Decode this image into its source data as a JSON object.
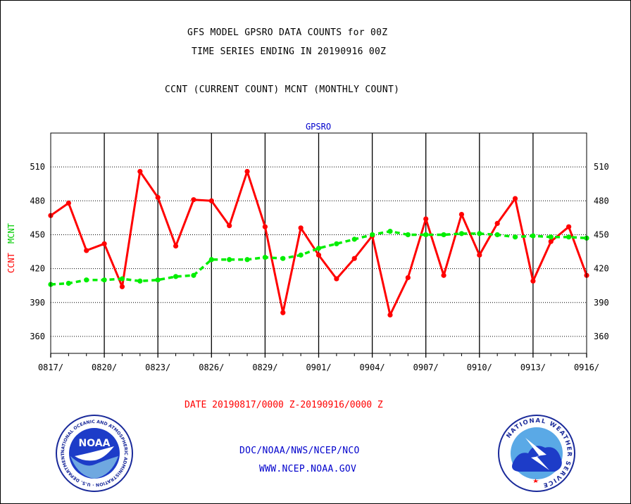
{
  "header": {
    "line1": "GFS MODEL GPSRO DATA COUNTS for 00Z",
    "line2": "TIME SERIES ENDING IN 20190916 00Z",
    "line3": "CCNT (CURRENT COUNT) MCNT (MONTHLY COUNT)"
  },
  "chart_data": {
    "type": "line",
    "title": "GPSRO",
    "ylabel_ccnt": "CCNT",
    "ylabel_mcnt": "MCNT",
    "xlabel": "DATE 20190817/0000 Z-20190916/0000 Z",
    "x": [
      "0817",
      "0818",
      "0819",
      "0820",
      "0821",
      "0822",
      "0823",
      "0824",
      "0825",
      "0826",
      "0827",
      "0828",
      "0829",
      "0830",
      "0831",
      "0901",
      "0902",
      "0903",
      "0904",
      "0905",
      "0906",
      "0907",
      "0908",
      "0909",
      "0910",
      "0911",
      "0912",
      "0913",
      "0914",
      "0915",
      "0916"
    ],
    "x_tick_labels": [
      "0817/",
      "0820/",
      "0823/",
      "0826/",
      "0829/",
      "0901/",
      "0904/",
      "0907/",
      "0910/",
      "0913/",
      "0916/"
    ],
    "y_ticks": [
      360,
      390,
      420,
      450,
      480,
      510
    ],
    "ylim": [
      345,
      540
    ],
    "grid": true,
    "series": [
      {
        "name": "CCNT",
        "color": "#ff0000",
        "values": [
          467,
          478,
          436,
          442,
          404,
          506,
          483,
          440,
          481,
          480,
          458,
          506,
          457,
          381,
          456,
          432,
          411,
          429,
          449,
          379,
          412,
          464,
          414,
          468,
          432,
          460,
          482,
          409,
          444,
          457,
          414
        ]
      },
      {
        "name": "MCNT",
        "color": "#00ee00",
        "values": [
          406,
          407,
          410,
          410,
          411,
          409,
          410,
          413,
          414,
          428,
          428,
          428,
          430,
          429,
          432,
          438,
          442,
          446,
          450,
          453,
          450,
          450,
          450,
          451,
          451,
          450,
          448,
          449,
          448,
          448,
          447
        ]
      }
    ]
  },
  "footer": {
    "line1": "DOC/NOAA/NWS/NCEP/NCO",
    "line2": "WWW.NCEP.NOAA.GOV"
  },
  "logos": {
    "noaa_text": "NOAA",
    "noaa_ring": "NATIONAL OCEANIC AND ATMOSPHERIC ADMINISTRATION · U.S. DEPARTMENT OF COMMERCE ·",
    "nws_ring": "NATIONAL WEATHER SERVICE"
  }
}
